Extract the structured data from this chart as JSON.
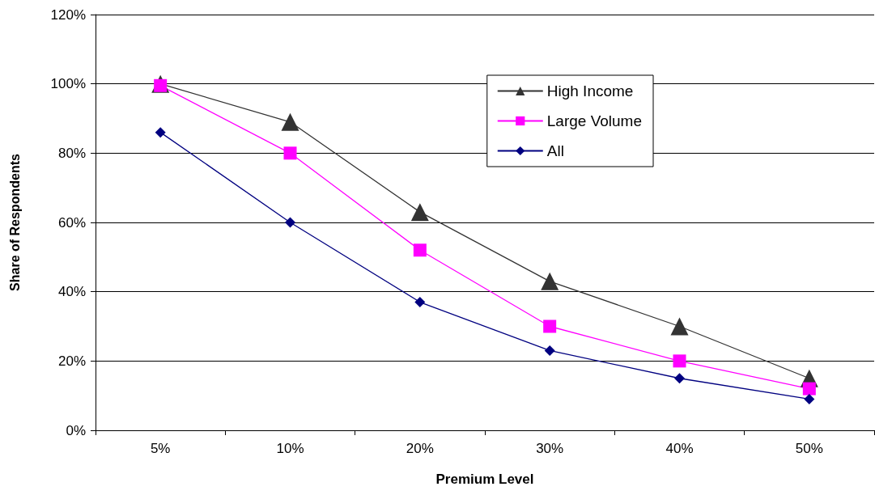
{
  "chart_data": {
    "type": "line",
    "xlabel": "Premium Level",
    "ylabel": "Share of Respondents",
    "categories": [
      "5%",
      "10%",
      "20%",
      "30%",
      "40%",
      "50%"
    ],
    "series": [
      {
        "name": "High Income",
        "color": "#333333",
        "marker": "triangle",
        "values": [
          100,
          89,
          63,
          43,
          30,
          15
        ]
      },
      {
        "name": "Large Volume",
        "color": "#ff00ff",
        "marker": "square",
        "values": [
          99.5,
          80,
          52,
          30,
          20,
          12
        ]
      },
      {
        "name": "All",
        "color": "#000080",
        "marker": "diamond",
        "values": [
          86,
          60,
          37,
          23,
          15,
          9
        ]
      }
    ],
    "ylim": [
      0,
      120
    ],
    "yticks": [
      {
        "value": 0,
        "label": "0%"
      },
      {
        "value": 20,
        "label": "20%"
      },
      {
        "value": 40,
        "label": "40%"
      },
      {
        "value": 60,
        "label": "60%"
      },
      {
        "value": 80,
        "label": "80%"
      },
      {
        "value": 100,
        "label": "100%"
      },
      {
        "value": 120,
        "label": "120%"
      }
    ],
    "grid": "y",
    "legend": "top right",
    "line_style": "solid"
  }
}
